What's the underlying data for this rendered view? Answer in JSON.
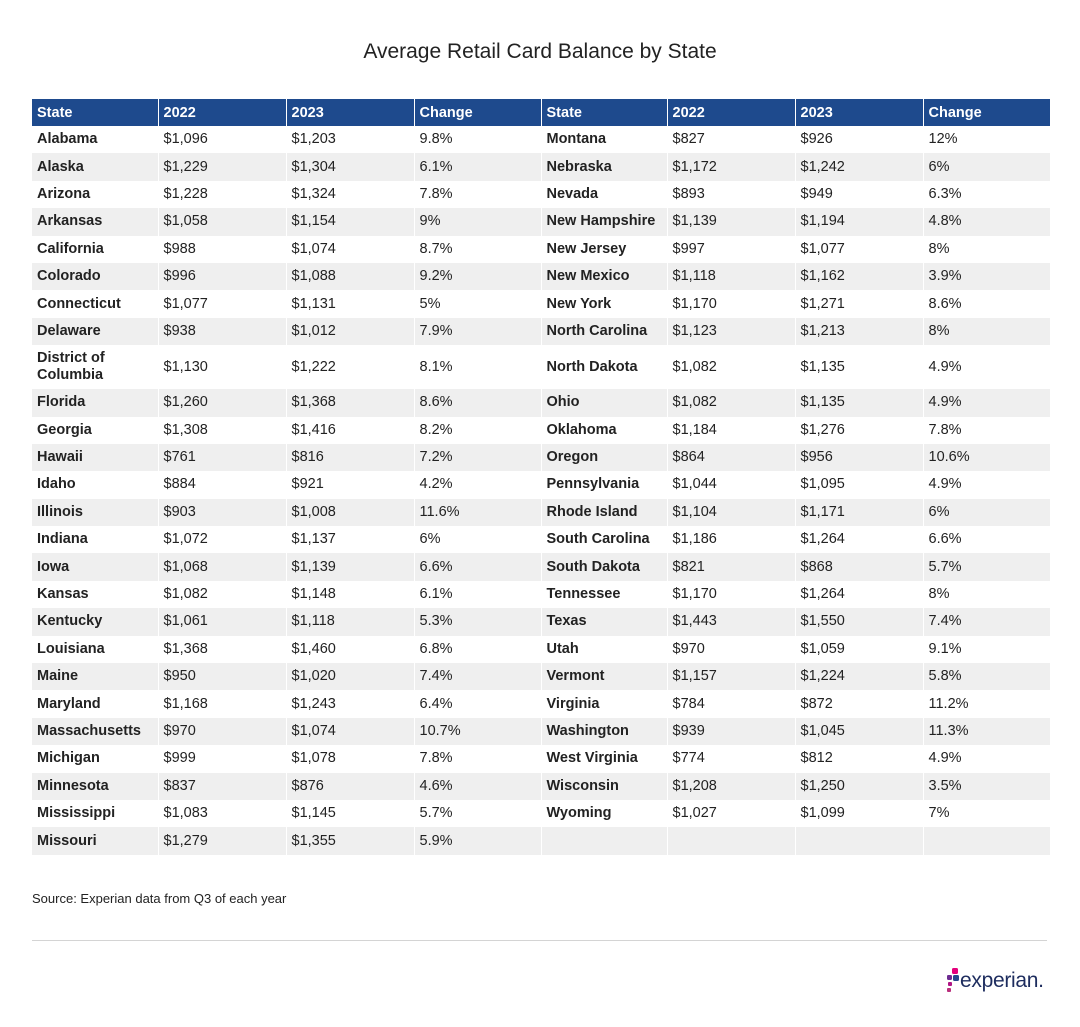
{
  "title": "Average Retail Card Balance by State",
  "headers": [
    "State",
    "2022",
    "2023",
    "Change",
    "State",
    "2022",
    "2023",
    "Change"
  ],
  "rows": [
    [
      [
        "Alabama",
        "$1,096",
        "$1,203",
        "9.8%"
      ],
      [
        "Montana",
        "$827",
        "$926",
        "12%"
      ]
    ],
    [
      [
        "Alaska",
        "$1,229",
        "$1,304",
        "6.1%"
      ],
      [
        "Nebraska",
        "$1,172",
        "$1,242",
        "6%"
      ]
    ],
    [
      [
        "Arizona",
        "$1,228",
        "$1,324",
        "7.8%"
      ],
      [
        "Nevada",
        "$893",
        "$949",
        "6.3%"
      ]
    ],
    [
      [
        "Arkansas",
        "$1,058",
        "$1,154",
        "9%"
      ],
      [
        "New Hampshire",
        "$1,139",
        "$1,194",
        "4.8%"
      ]
    ],
    [
      [
        "California",
        "$988",
        "$1,074",
        "8.7%"
      ],
      [
        "New Jersey",
        "$997",
        "$1,077",
        "8%"
      ]
    ],
    [
      [
        "Colorado",
        "$996",
        "$1,088",
        "9.2%"
      ],
      [
        "New Mexico",
        "$1,118",
        "$1,162",
        "3.9%"
      ]
    ],
    [
      [
        "Connecticut",
        "$1,077",
        "$1,131",
        "5%"
      ],
      [
        "New York",
        "$1,170",
        "$1,271",
        "8.6%"
      ]
    ],
    [
      [
        "Delaware",
        "$938",
        "$1,012",
        "7.9%"
      ],
      [
        "North Carolina",
        "$1,123",
        "$1,213",
        "8%"
      ]
    ],
    [
      [
        "District of Columbia",
        "$1,130",
        "$1,222",
        "8.1%"
      ],
      [
        "North Dakota",
        "$1,082",
        "$1,135",
        "4.9%"
      ]
    ],
    [
      [
        "Florida",
        "$1,260",
        "$1,368",
        "8.6%"
      ],
      [
        "Ohio",
        "$1,082",
        "$1,135",
        "4.9%"
      ]
    ],
    [
      [
        "Georgia",
        "$1,308",
        "$1,416",
        "8.2%"
      ],
      [
        "Oklahoma",
        "$1,184",
        "$1,276",
        "7.8%"
      ]
    ],
    [
      [
        "Hawaii",
        "$761",
        "$816",
        "7.2%"
      ],
      [
        "Oregon",
        "$864",
        "$956",
        "10.6%"
      ]
    ],
    [
      [
        "Idaho",
        "$884",
        "$921",
        "4.2%"
      ],
      [
        "Pennsylvania",
        "$1,044",
        "$1,095",
        "4.9%"
      ]
    ],
    [
      [
        "Illinois",
        "$903",
        "$1,008",
        "11.6%"
      ],
      [
        "Rhode Island",
        "$1,104",
        "$1,171",
        "6%"
      ]
    ],
    [
      [
        "Indiana",
        "$1,072",
        "$1,137",
        "6%"
      ],
      [
        "South Carolina",
        "$1,186",
        "$1,264",
        "6.6%"
      ]
    ],
    [
      [
        "Iowa",
        "$1,068",
        "$1,139",
        "6.6%"
      ],
      [
        "South Dakota",
        "$821",
        "$868",
        "5.7%"
      ]
    ],
    [
      [
        "Kansas",
        "$1,082",
        "$1,148",
        "6.1%"
      ],
      [
        "Tennessee",
        "$1,170",
        "$1,264",
        "8%"
      ]
    ],
    [
      [
        "Kentucky",
        "$1,061",
        "$1,118",
        "5.3%"
      ],
      [
        "Texas",
        "$1,443",
        "$1,550",
        "7.4%"
      ]
    ],
    [
      [
        "Louisiana",
        "$1,368",
        "$1,460",
        "6.8%"
      ],
      [
        "Utah",
        "$970",
        "$1,059",
        "9.1%"
      ]
    ],
    [
      [
        "Maine",
        "$950",
        "$1,020",
        "7.4%"
      ],
      [
        "Vermont",
        "$1,157",
        "$1,224",
        "5.8%"
      ]
    ],
    [
      [
        "Maryland",
        "$1,168",
        "$1,243",
        "6.4%"
      ],
      [
        "Virginia",
        "$784",
        "$872",
        "11.2%"
      ]
    ],
    [
      [
        "Massachusetts",
        "$970",
        "$1,074",
        "10.7%"
      ],
      [
        "Washington",
        "$939",
        "$1,045",
        "11.3%"
      ]
    ],
    [
      [
        "Michigan",
        "$999",
        "$1,078",
        "7.8%"
      ],
      [
        "West Virginia",
        "$774",
        "$812",
        "4.9%"
      ]
    ],
    [
      [
        "Minnesota",
        "$837",
        "$876",
        "4.6%"
      ],
      [
        "Wisconsin",
        "$1,208",
        "$1,250",
        "3.5%"
      ]
    ],
    [
      [
        "Mississippi",
        "$1,083",
        "$1,145",
        "5.7%"
      ],
      [
        "Wyoming",
        "$1,027",
        "$1,099",
        "7%"
      ]
    ],
    [
      [
        "Missouri",
        "$1,279",
        "$1,355",
        "5.9%"
      ],
      [
        "",
        "",
        "",
        ""
      ]
    ]
  ],
  "source": "Source: Experian data from Q3 of each year",
  "logo": {
    "text": "experian.",
    "colors": [
      "#e4007c",
      "#6d2c91",
      "#26478d",
      "#af1685",
      "#ba2f7d"
    ]
  }
}
